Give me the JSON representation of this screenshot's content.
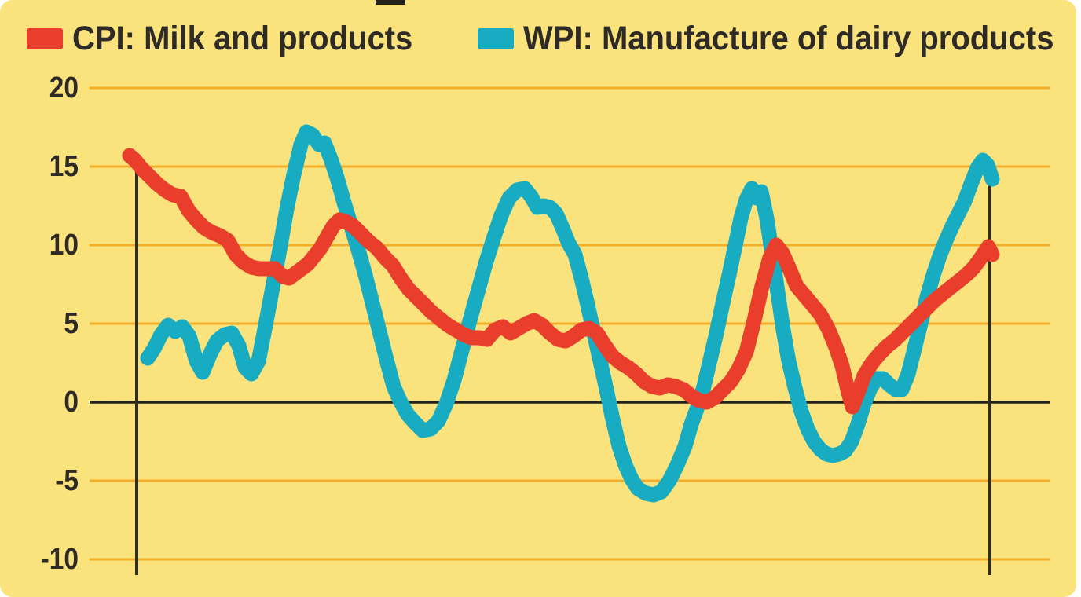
{
  "legend": {
    "items": [
      {
        "label": "CPI: Milk and products",
        "color": "#E93E2C"
      },
      {
        "label": "WPI: Manufacture of dairy products",
        "color": "#17ACC1"
      }
    ]
  },
  "chart_data": {
    "type": "line",
    "title": "",
    "legend_position": "top",
    "grid": true,
    "x_axis": {
      "tick_labels_visible": false,
      "x_unit": "source-image pixels (no x tick labels visible in screenshot)"
    },
    "y_axis": {
      "ticks": [
        20,
        15,
        10,
        5,
        0,
        -5,
        -10
      ],
      "range": [
        -12,
        21
      ]
    },
    "colors": {
      "background": "#FAE37D",
      "gridline": "#F2AE2B",
      "zero_line": "#23231C",
      "marker_line": "#2F2D1C",
      "label_text": "#2E2A25"
    },
    "series": [
      {
        "name": "WPI: Manufacture of dairy products",
        "color": "#17ACC1",
        "points": [
          [
            188,
            2.8
          ],
          [
            196,
            3.4
          ],
          [
            205,
            4.3
          ],
          [
            214,
            4.9
          ],
          [
            223,
            4.5
          ],
          [
            232,
            4.8
          ],
          [
            241,
            4.2
          ],
          [
            250,
            2.6
          ],
          [
            258,
            1.9
          ],
          [
            267,
            3.0
          ],
          [
            276,
            3.9
          ],
          [
            286,
            4.3
          ],
          [
            295,
            4.4
          ],
          [
            304,
            3.6
          ],
          [
            312,
            2.2
          ],
          [
            320,
            1.8
          ],
          [
            329,
            2.6
          ],
          [
            338,
            4.9
          ],
          [
            347,
            7.3
          ],
          [
            356,
            9.7
          ],
          [
            365,
            12.3
          ],
          [
            374,
            14.5
          ],
          [
            383,
            16.4
          ],
          [
            390,
            17.2
          ],
          [
            398,
            17.0
          ],
          [
            406,
            16.4
          ],
          [
            413,
            16.5
          ],
          [
            421,
            15.5
          ],
          [
            429,
            14.3
          ],
          [
            438,
            12.7
          ],
          [
            447,
            11.2
          ],
          [
            456,
            9.7
          ],
          [
            465,
            8.1
          ],
          [
            474,
            6.3
          ],
          [
            483,
            4.5
          ],
          [
            492,
            2.7
          ],
          [
            501,
            1.0
          ],
          [
            510,
            0.0
          ],
          [
            519,
            -0.8
          ],
          [
            528,
            -1.3
          ],
          [
            538,
            -1.8
          ],
          [
            548,
            -1.7
          ],
          [
            558,
            -1.2
          ],
          [
            568,
            -0.1
          ],
          [
            578,
            1.4
          ],
          [
            588,
            3.3
          ],
          [
            598,
            5.2
          ],
          [
            608,
            7.0
          ],
          [
            618,
            8.8
          ],
          [
            628,
            10.4
          ],
          [
            638,
            11.9
          ],
          [
            648,
            13.0
          ],
          [
            658,
            13.5
          ],
          [
            668,
            13.6
          ],
          [
            676,
            13.1
          ],
          [
            684,
            12.4
          ],
          [
            692,
            12.5
          ],
          [
            700,
            12.4
          ],
          [
            708,
            12.0
          ],
          [
            716,
            11.1
          ],
          [
            724,
            10.1
          ],
          [
            732,
            9.4
          ],
          [
            740,
            7.9
          ],
          [
            748,
            6.2
          ],
          [
            756,
            4.4
          ],
          [
            764,
            2.6
          ],
          [
            772,
            0.8
          ],
          [
            780,
            -1.1
          ],
          [
            788,
            -2.8
          ],
          [
            796,
            -4.0
          ],
          [
            804,
            -4.9
          ],
          [
            812,
            -5.5
          ],
          [
            822,
            -5.8
          ],
          [
            832,
            -5.9
          ],
          [
            842,
            -5.7
          ],
          [
            852,
            -5.0
          ],
          [
            862,
            -4.0
          ],
          [
            872,
            -2.8
          ],
          [
            880,
            -1.4
          ],
          [
            888,
            -0.3
          ],
          [
            896,
            1.0
          ],
          [
            904,
            2.7
          ],
          [
            912,
            4.4
          ],
          [
            920,
            6.3
          ],
          [
            928,
            8.1
          ],
          [
            936,
            10.0
          ],
          [
            943,
            11.7
          ],
          [
            950,
            12.9
          ],
          [
            957,
            13.6
          ],
          [
            963,
            13.0
          ],
          [
            969,
            13.4
          ],
          [
            976,
            11.7
          ],
          [
            983,
            9.4
          ],
          [
            990,
            7.0
          ],
          [
            997,
            4.6
          ],
          [
            1004,
            2.6
          ],
          [
            1012,
            0.9
          ],
          [
            1020,
            -0.6
          ],
          [
            1028,
            -1.7
          ],
          [
            1036,
            -2.5
          ],
          [
            1044,
            -3.0
          ],
          [
            1052,
            -3.3
          ],
          [
            1060,
            -3.4
          ],
          [
            1068,
            -3.3
          ],
          [
            1076,
            -3.1
          ],
          [
            1084,
            -2.5
          ],
          [
            1092,
            -1.4
          ],
          [
            1100,
            -0.1
          ],
          [
            1108,
            0.9
          ],
          [
            1116,
            1.5
          ],
          [
            1124,
            1.5
          ],
          [
            1132,
            1.1
          ],
          [
            1140,
            0.8
          ],
          [
            1148,
            0.8
          ],
          [
            1156,
            1.8
          ],
          [
            1164,
            3.4
          ],
          [
            1172,
            5.0
          ],
          [
            1180,
            6.7
          ],
          [
            1188,
            8.1
          ],
          [
            1196,
            9.3
          ],
          [
            1204,
            10.3
          ],
          [
            1212,
            11.2
          ],
          [
            1220,
            12.0
          ],
          [
            1228,
            12.8
          ],
          [
            1236,
            13.9
          ],
          [
            1244,
            14.9
          ],
          [
            1251,
            15.4
          ],
          [
            1257,
            15.1
          ],
          [
            1263,
            14.2
          ]
        ]
      },
      {
        "name": "CPI: Milk and products",
        "color": "#E93E2C",
        "points": [
          [
            165,
            15.7
          ],
          [
            172,
            15.4
          ],
          [
            180,
            14.9
          ],
          [
            190,
            14.4
          ],
          [
            200,
            13.9
          ],
          [
            210,
            13.5
          ],
          [
            220,
            13.2
          ],
          [
            230,
            13.1
          ],
          [
            240,
            12.2
          ],
          [
            250,
            11.6
          ],
          [
            260,
            11.1
          ],
          [
            270,
            10.8
          ],
          [
            280,
            10.6
          ],
          [
            290,
            10.3
          ],
          [
            300,
            9.4
          ],
          [
            310,
            8.9
          ],
          [
            320,
            8.6
          ],
          [
            330,
            8.5
          ],
          [
            340,
            8.5
          ],
          [
            350,
            8.5
          ],
          [
            360,
            8.0
          ],
          [
            368,
            7.9
          ],
          [
            376,
            8.2
          ],
          [
            384,
            8.5
          ],
          [
            392,
            8.8
          ],
          [
            400,
            9.3
          ],
          [
            408,
            9.8
          ],
          [
            416,
            10.5
          ],
          [
            424,
            11.2
          ],
          [
            432,
            11.6
          ],
          [
            440,
            11.5
          ],
          [
            450,
            11.2
          ],
          [
            460,
            10.7
          ],
          [
            470,
            10.2
          ],
          [
            480,
            9.8
          ],
          [
            490,
            9.2
          ],
          [
            500,
            8.7
          ],
          [
            510,
            7.9
          ],
          [
            520,
            7.2
          ],
          [
            530,
            6.7
          ],
          [
            540,
            6.2
          ],
          [
            550,
            5.7
          ],
          [
            560,
            5.3
          ],
          [
            570,
            4.9
          ],
          [
            580,
            4.6
          ],
          [
            590,
            4.3
          ],
          [
            600,
            4.1
          ],
          [
            610,
            4.1
          ],
          [
            620,
            4.0
          ],
          [
            630,
            4.6
          ],
          [
            640,
            4.8
          ],
          [
            650,
            4.4
          ],
          [
            660,
            4.7
          ],
          [
            670,
            5.0
          ],
          [
            680,
            5.2
          ],
          [
            690,
            4.9
          ],
          [
            700,
            4.4
          ],
          [
            710,
            4.0
          ],
          [
            720,
            3.9
          ],
          [
            730,
            4.2
          ],
          [
            740,
            4.6
          ],
          [
            750,
            4.7
          ],
          [
            760,
            4.4
          ],
          [
            770,
            3.6
          ],
          [
            780,
            2.9
          ],
          [
            790,
            2.5
          ],
          [
            800,
            2.2
          ],
          [
            810,
            1.8
          ],
          [
            820,
            1.3
          ],
          [
            830,
            1.0
          ],
          [
            840,
            0.9
          ],
          [
            850,
            1.1
          ],
          [
            860,
            1.0
          ],
          [
            870,
            0.8
          ],
          [
            880,
            0.4
          ],
          [
            890,
            0.1
          ],
          [
            900,
            0.0
          ],
          [
            910,
            0.3
          ],
          [
            920,
            0.8
          ],
          [
            930,
            1.3
          ],
          [
            940,
            2.1
          ],
          [
            950,
            3.2
          ],
          [
            960,
            5.2
          ],
          [
            970,
            7.4
          ],
          [
            980,
            9.2
          ],
          [
            988,
            10.0
          ],
          [
            996,
            9.5
          ],
          [
            1004,
            8.6
          ],
          [
            1014,
            7.4
          ],
          [
            1024,
            6.8
          ],
          [
            1034,
            6.2
          ],
          [
            1044,
            5.6
          ],
          [
            1054,
            4.7
          ],
          [
            1064,
            3.5
          ],
          [
            1072,
            2.3
          ],
          [
            1080,
            0.6
          ],
          [
            1085,
            -0.3
          ],
          [
            1092,
            0.6
          ],
          [
            1100,
            1.7
          ],
          [
            1110,
            2.5
          ],
          [
            1120,
            3.1
          ],
          [
            1130,
            3.6
          ],
          [
            1140,
            4.0
          ],
          [
            1150,
            4.5
          ],
          [
            1160,
            5.0
          ],
          [
            1170,
            5.5
          ],
          [
            1180,
            6.0
          ],
          [
            1190,
            6.5
          ],
          [
            1200,
            6.9
          ],
          [
            1210,
            7.3
          ],
          [
            1220,
            7.7
          ],
          [
            1230,
            8.1
          ],
          [
            1240,
            8.6
          ],
          [
            1250,
            9.3
          ],
          [
            1258,
            9.9
          ],
          [
            1263,
            9.4
          ]
        ]
      }
    ]
  }
}
